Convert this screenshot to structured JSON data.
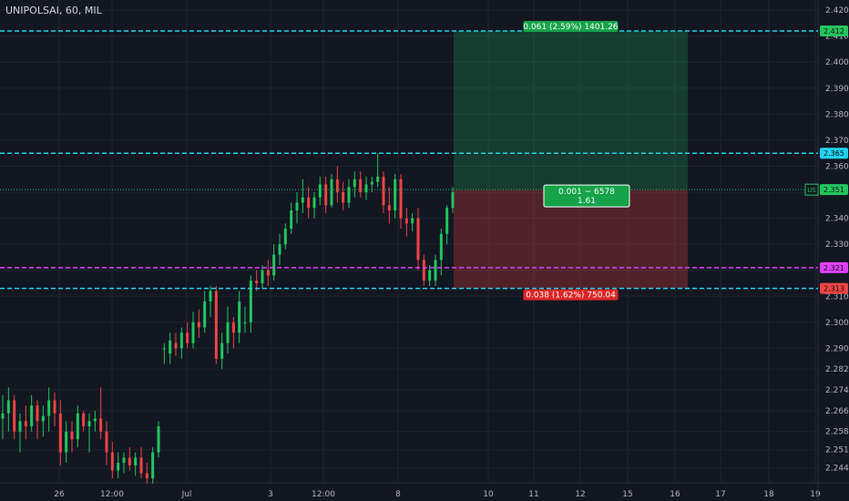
{
  "header": {
    "symbol_line": "UNIPOLSAI, 60, MIL"
  },
  "chart_data": {
    "type": "candlestick",
    "title": "UNIPOLSAI, 60, MIL",
    "ylim": [
      2.2383,
      2.4239
    ],
    "y_ticks": [
      "2.244",
      "2.251",
      "2.258",
      "2.266",
      "2.274",
      "2.282",
      "2.290",
      "2.300",
      "2.310",
      "2.320",
      "2.330",
      "2.340",
      "2.350",
      "2.360",
      "2.370",
      "2.380",
      "2.390",
      "2.400",
      "2.410",
      "2.420"
    ],
    "x_tick_labels": [
      "26",
      "12:00",
      "Jul",
      "3",
      "12:00",
      "8",
      "10",
      "11",
      "12",
      "15",
      "16",
      "17",
      "18",
      "19"
    ],
    "candles": [
      [
        2.263,
        2.272,
        2.255,
        2.265
      ],
      [
        2.265,
        2.275,
        2.258,
        2.27
      ],
      [
        2.27,
        2.272,
        2.255,
        2.258
      ],
      [
        2.258,
        2.265,
        2.25,
        2.262
      ],
      [
        2.262,
        2.268,
        2.255,
        2.26
      ],
      [
        2.26,
        2.272,
        2.258,
        2.268
      ],
      [
        2.268,
        2.27,
        2.255,
        2.262
      ],
      [
        2.262,
        2.268,
        2.256,
        2.264
      ],
      [
        2.264,
        2.275,
        2.258,
        2.27
      ],
      [
        2.27,
        2.273,
        2.26,
        2.265
      ],
      [
        2.265,
        2.27,
        2.245,
        2.25
      ],
      [
        2.25,
        2.262,
        2.246,
        2.258
      ],
      [
        2.258,
        2.262,
        2.25,
        2.255
      ],
      [
        2.255,
        2.268,
        2.252,
        2.265
      ],
      [
        2.265,
        2.266,
        2.258,
        2.26
      ],
      [
        2.26,
        2.265,
        2.25,
        2.262
      ],
      [
        2.262,
        2.266,
        2.258,
        2.263
      ],
      [
        2.263,
        2.275,
        2.255,
        2.258
      ],
      [
        2.258,
        2.262,
        2.245,
        2.25
      ],
      [
        2.25,
        2.254,
        2.24,
        2.243
      ],
      [
        2.243,
        2.25,
        2.24,
        2.246
      ],
      [
        2.246,
        2.25,
        2.242,
        2.248
      ],
      [
        2.248,
        2.252,
        2.243,
        2.245
      ],
      [
        2.245,
        2.25,
        2.241,
        2.248
      ],
      [
        2.248,
        2.252,
        2.24,
        2.242
      ],
      [
        2.242,
        2.246,
        2.238,
        2.24
      ],
      [
        2.24,
        2.252,
        2.238,
        2.25
      ],
      [
        2.25,
        2.262,
        2.248,
        2.26
      ],
      [
        2.29,
        2.292,
        2.284,
        2.29
      ],
      [
        2.288,
        2.296,
        2.284,
        2.293
      ],
      [
        2.292,
        2.296,
        2.287,
        2.29
      ],
      [
        2.29,
        2.298,
        2.286,
        2.296
      ],
      [
        2.296,
        2.3,
        2.29,
        2.292
      ],
      [
        2.292,
        2.304,
        2.29,
        2.3
      ],
      [
        2.3,
        2.305,
        2.294,
        2.298
      ],
      [
        2.298,
        2.312,
        2.296,
        2.308
      ],
      [
        2.308,
        2.314,
        2.302,
        2.312
      ],
      [
        2.312,
        2.314,
        2.284,
        2.286
      ],
      [
        2.286,
        2.296,
        2.282,
        2.292
      ],
      [
        2.292,
        2.306,
        2.288,
        2.3
      ],
      [
        2.3,
        2.302,
        2.29,
        2.296
      ],
      [
        2.296,
        2.312,
        2.292,
        2.308
      ],
      [
        2.3,
        2.306,
        2.296,
        2.3
      ],
      [
        2.3,
        2.318,
        2.296,
        2.316
      ],
      [
        2.316,
        2.32,
        2.312,
        2.315
      ],
      [
        2.315,
        2.322,
        2.313,
        2.32
      ],
      [
        2.32,
        2.324,
        2.314,
        2.318
      ],
      [
        2.318,
        2.33,
        2.316,
        2.326
      ],
      [
        2.326,
        2.334,
        2.322,
        2.33
      ],
      [
        2.33,
        2.338,
        2.328,
        2.336
      ],
      [
        2.336,
        2.346,
        2.334,
        2.343
      ],
      [
        2.343,
        2.35,
        2.338,
        2.346
      ],
      [
        2.346,
        2.355,
        2.342,
        2.348
      ],
      [
        2.348,
        2.352,
        2.34,
        2.344
      ],
      [
        2.344,
        2.35,
        2.34,
        2.348
      ],
      [
        2.348,
        2.356,
        2.345,
        2.353
      ],
      [
        2.353,
        2.356,
        2.342,
        2.345
      ],
      [
        2.345,
        2.357,
        2.344,
        2.355
      ],
      [
        2.355,
        2.36,
        2.346,
        2.35
      ],
      [
        2.35,
        2.354,
        2.343,
        2.346
      ],
      [
        2.346,
        2.355,
        2.344,
        2.352
      ],
      [
        2.352,
        2.358,
        2.348,
        2.355
      ],
      [
        2.355,
        2.358,
        2.348,
        2.35
      ],
      [
        2.35,
        2.356,
        2.347,
        2.353
      ],
      [
        2.353,
        2.356,
        2.35,
        2.354
      ],
      [
        2.354,
        2.365,
        2.352,
        2.356
      ],
      [
        2.356,
        2.358,
        2.342,
        2.345
      ],
      [
        2.345,
        2.352,
        2.338,
        2.343
      ],
      [
        2.343,
        2.357,
        2.34,
        2.355
      ],
      [
        2.355,
        2.357,
        2.336,
        2.34
      ],
      [
        2.34,
        2.344,
        2.333,
        2.338
      ],
      [
        2.338,
        2.342,
        2.335,
        2.34
      ],
      [
        2.34,
        2.344,
        2.32,
        2.324
      ],
      [
        2.324,
        2.326,
        2.314,
        2.316
      ],
      [
        2.316,
        2.322,
        2.314,
        2.32
      ],
      [
        2.316,
        2.326,
        2.314,
        2.324
      ],
      [
        2.324,
        2.336,
        2.318,
        2.334
      ],
      [
        2.334,
        2.345,
        2.33,
        2.344
      ],
      [
        2.344,
        2.352,
        2.342,
        2.35
      ]
    ],
    "horizontal_lines": [
      {
        "price": 2.412,
        "label": "2.412",
        "color": "#22d3ee",
        "label_bg": "#22c55e"
      },
      {
        "price": 2.365,
        "label": "2.365",
        "color": "#22d3ee",
        "label_bg": "#22d3ee"
      },
      {
        "price": 2.321,
        "label": "2.321",
        "color": "#e040fb",
        "label_bg": "#e040fb"
      },
      {
        "price": 2.313,
        "label": "2.313",
        "color": "#22d3ee",
        "label_bg": "#ef4444"
      }
    ],
    "last_price": {
      "value": 2.351,
      "label": "2.351",
      "tag": "US"
    },
    "position": {
      "entry": 2.351,
      "target": 2.412,
      "stop": 2.313,
      "target_label": "0.061 (2.59%) 1401.26",
      "stop_label": "0.038 (1.62%) 750.04",
      "center_label_1": "0.001 ~ 6578",
      "center_label_2": "1.61"
    },
    "colors": {
      "bull": "#22c55e",
      "bear": "#ef4444",
      "background": "#131722",
      "grid": "#1f2430",
      "axis_text": "#b2b5be"
    }
  }
}
